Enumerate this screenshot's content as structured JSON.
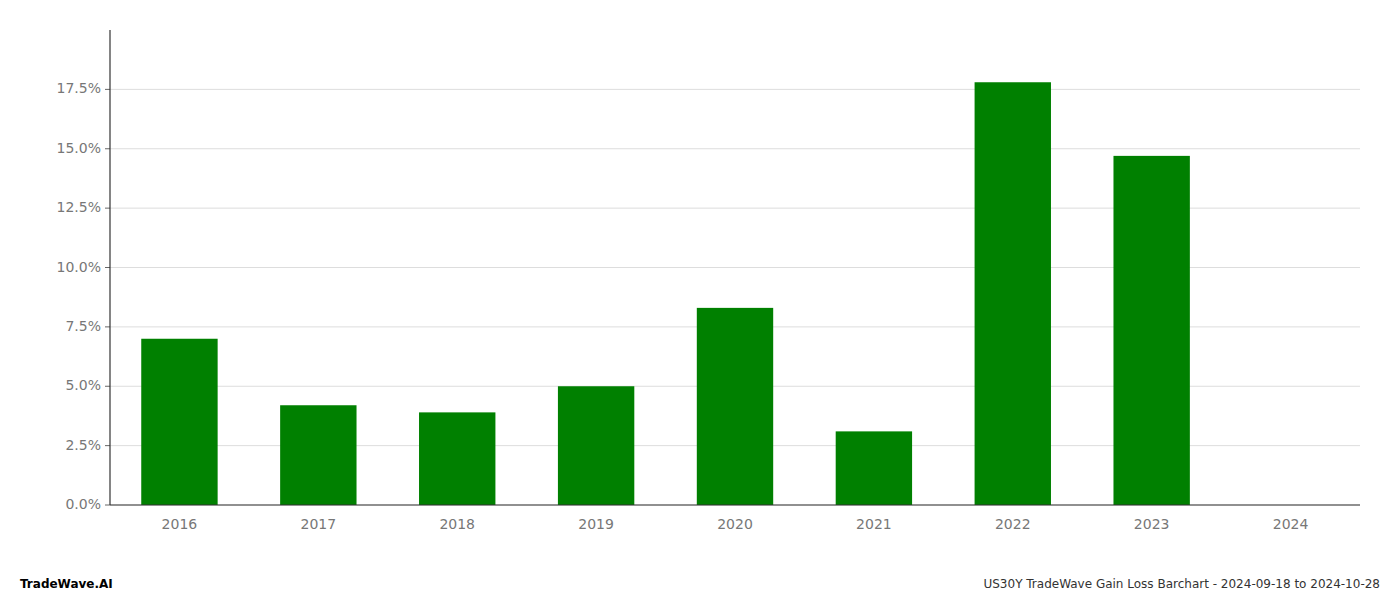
{
  "chart_data": {
    "type": "bar",
    "title": "US30Y TradeWave Gain Loss Barchart - 2024-09-18 to 2024-10-28",
    "annotations": [
      "TradeWave.AI"
    ],
    "categories": [
      "2016",
      "2017",
      "2018",
      "2019",
      "2020",
      "2021",
      "2022",
      "2023",
      "2024"
    ],
    "values": [
      0.07,
      0.042,
      0.039,
      0.05,
      0.083,
      0.031,
      0.178,
      0.147,
      0.0
    ],
    "color": "#008000",
    "ylim": [
      0.0,
      0.2
    ],
    "yticks": [
      {
        "value": 0.0,
        "label": "0.0%"
      },
      {
        "value": 0.025,
        "label": "2.5%"
      },
      {
        "value": 0.05,
        "label": "5.0%"
      },
      {
        "value": 0.075,
        "label": "7.5%"
      },
      {
        "value": 0.1,
        "label": "10.0%"
      },
      {
        "value": 0.125,
        "label": "12.5%"
      },
      {
        "value": 0.15,
        "label": "15.0%"
      },
      {
        "value": 0.175,
        "label": "17.5%"
      }
    ],
    "grid": true
  }
}
